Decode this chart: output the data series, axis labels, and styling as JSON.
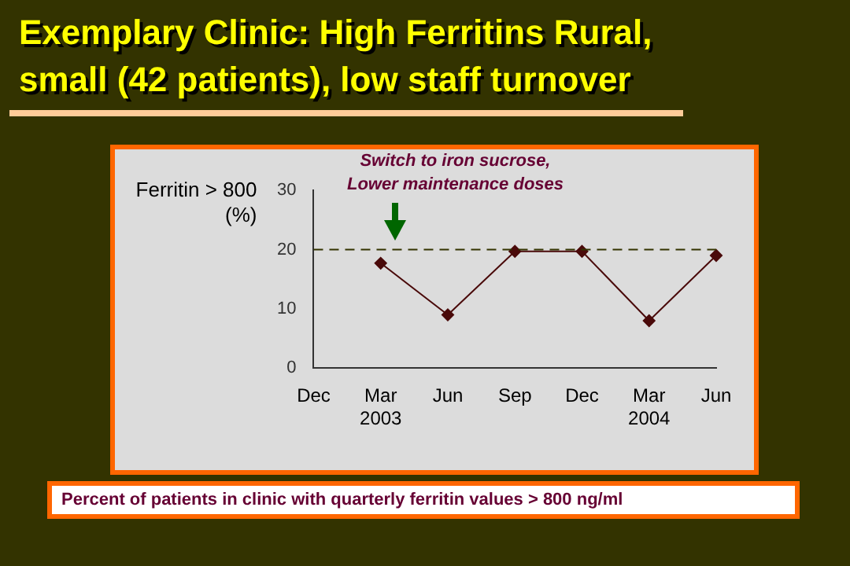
{
  "chart_data": {
    "type": "line",
    "title": "Exemplary Clinic:  High Ferritins Rural,\nsmall (42 patients), low staff turnover",
    "ylabel": "Ferritin > 800\n(%)",
    "categories": [
      "Dec",
      "Mar\n2003",
      "Jun",
      "Sep",
      "Dec",
      "Mar\n2004",
      "Jun"
    ],
    "series": [
      {
        "color": "#4a0a0a",
        "values": [
          null,
          17.7,
          9,
          19.7,
          19.7,
          8,
          19
        ]
      }
    ],
    "ylim": [
      0,
      30
    ],
    "yticks": [
      0,
      10,
      20,
      30
    ],
    "grid": false,
    "legend": false,
    "marker": "diamond",
    "line_style": "solid",
    "ref_lines": [
      {
        "axis": "y",
        "value": 20,
        "color": "#333300",
        "line_style": "dashed"
      }
    ],
    "annotations": [
      "Switch to iron sucrose,\nLower maintenance doses",
      "Percent of patients in clinic with quarterly ferritin values > 800 ng/ml"
    ]
  }
}
